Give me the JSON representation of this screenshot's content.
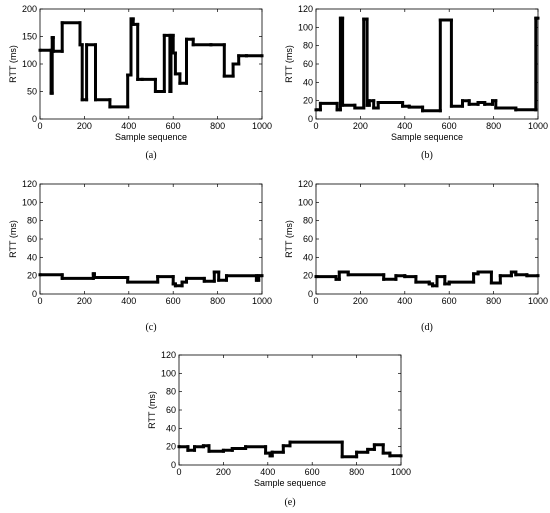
{
  "chart_data": [
    {
      "type": "line",
      "panel_label": "(a)",
      "xlabel": "Sample sequence",
      "ylabel": "RTT (ms)",
      "xlim": [
        0,
        1000
      ],
      "ylim": [
        0,
        200
      ],
      "xticks": [
        0,
        200,
        400,
        600,
        800,
        1000
      ],
      "yticks": [
        0,
        50,
        100,
        150,
        200
      ],
      "grid": false,
      "x": [
        0,
        50,
        50,
        55,
        55,
        60,
        60,
        100,
        100,
        180,
        180,
        190,
        190,
        210,
        210,
        250,
        250,
        315,
        315,
        395,
        395,
        410,
        410,
        420,
        420,
        440,
        440,
        460,
        460,
        520,
        520,
        560,
        560,
        585,
        585,
        590,
        590,
        600,
        600,
        610,
        610,
        630,
        630,
        660,
        660,
        690,
        690,
        770,
        770,
        830,
        830,
        870,
        870,
        895,
        895,
        930,
        930,
        1000
      ],
      "y": [
        125,
        125,
        47,
        47,
        148,
        148,
        123,
        123,
        175,
        175,
        135,
        135,
        35,
        35,
        135,
        135,
        35,
        35,
        22,
        22,
        80,
        80,
        182,
        182,
        172,
        172,
        72,
        72,
        72,
        72,
        50,
        50,
        152,
        152,
        50,
        50,
        152,
        152,
        120,
        120,
        82,
        82,
        65,
        65,
        145,
        145,
        135,
        135,
        135,
        135,
        78,
        78,
        100,
        100,
        115,
        115,
        115,
        115
      ]
    },
    {
      "type": "line",
      "panel_label": "(b)",
      "xlabel": "Sample sequence",
      "ylabel": "RTT (ms)",
      "xlim": [
        0,
        1000
      ],
      "ylim": [
        0,
        120
      ],
      "xticks": [
        0,
        200,
        400,
        600,
        800,
        1000
      ],
      "yticks": [
        0,
        20,
        40,
        60,
        80,
        100,
        120
      ],
      "grid": false,
      "x": [
        0,
        20,
        20,
        95,
        95,
        110,
        110,
        120,
        120,
        175,
        175,
        215,
        215,
        230,
        230,
        240,
        240,
        260,
        260,
        280,
        280,
        350,
        350,
        390,
        390,
        420,
        420,
        480,
        480,
        560,
        560,
        610,
        610,
        660,
        660,
        690,
        690,
        730,
        730,
        760,
        760,
        795,
        795,
        810,
        810,
        900,
        900,
        990,
        990,
        1000
      ],
      "y": [
        10,
        10,
        17,
        17,
        10,
        10,
        110,
        110,
        15,
        15,
        12,
        12,
        109,
        109,
        15,
        15,
        20,
        20,
        12,
        12,
        18,
        18,
        18,
        18,
        14,
        14,
        13,
        13,
        9,
        9,
        108,
        108,
        14,
        14,
        20,
        20,
        16,
        16,
        18,
        18,
        16,
        16,
        20,
        20,
        12,
        12,
        10,
        10,
        110,
        110
      ]
    },
    {
      "type": "line",
      "panel_label": "(c)",
      "xlabel": "",
      "ylabel": "RTT (ms)",
      "xlim": [
        0,
        1000
      ],
      "ylim": [
        0,
        120
      ],
      "xticks": [
        0,
        200,
        400,
        600,
        800,
        1000
      ],
      "yticks": [
        0,
        20,
        40,
        60,
        80,
        100,
        120
      ],
      "grid": false,
      "x": [
        0,
        100,
        100,
        240,
        240,
        245,
        245,
        395,
        395,
        530,
        530,
        600,
        600,
        610,
        610,
        640,
        640,
        660,
        660,
        740,
        740,
        785,
        785,
        805,
        805,
        840,
        840,
        975,
        975,
        985,
        985,
        1000
      ],
      "y": [
        21,
        21,
        17,
        17,
        22,
        22,
        18,
        18,
        13,
        13,
        19,
        19,
        11,
        11,
        9,
        9,
        13,
        13,
        17,
        17,
        14,
        14,
        24,
        24,
        15,
        15,
        20,
        20,
        15,
        15,
        20,
        20
      ]
    },
    {
      "type": "line",
      "panel_label": "(d)",
      "xlabel": "",
      "ylabel": "RTT (ms)",
      "xlim": [
        0,
        1000
      ],
      "ylim": [
        0,
        120
      ],
      "xticks": [
        0,
        200,
        400,
        600,
        800,
        1000
      ],
      "yticks": [
        0,
        20,
        40,
        60,
        80,
        100,
        120
      ],
      "grid": false,
      "x": [
        0,
        90,
        90,
        105,
        105,
        145,
        145,
        305,
        305,
        360,
        360,
        400,
        400,
        450,
        450,
        510,
        510,
        525,
        525,
        545,
        545,
        580,
        580,
        600,
        600,
        710,
        710,
        730,
        730,
        790,
        790,
        830,
        830,
        880,
        880,
        900,
        900,
        950,
        950,
        1000
      ],
      "y": [
        19,
        19,
        16,
        16,
        24,
        24,
        21,
        21,
        16,
        16,
        20,
        20,
        19,
        19,
        13,
        13,
        11,
        11,
        9,
        9,
        19,
        19,
        11,
        11,
        13,
        13,
        22,
        22,
        24,
        24,
        12,
        12,
        20,
        20,
        24,
        24,
        21,
        21,
        20,
        20
      ]
    },
    {
      "type": "line",
      "panel_label": "(e)",
      "xlabel": "Sample sequence",
      "ylabel": "RTT (ms)",
      "xlim": [
        0,
        1000
      ],
      "ylim": [
        0,
        120
      ],
      "xticks": [
        0,
        200,
        400,
        600,
        800,
        1000
      ],
      "yticks": [
        0,
        20,
        40,
        60,
        80,
        100,
        120
      ],
      "grid": false,
      "x": [
        0,
        40,
        40,
        70,
        70,
        110,
        110,
        135,
        135,
        200,
        200,
        240,
        240,
        300,
        300,
        390,
        390,
        410,
        410,
        420,
        420,
        470,
        470,
        500,
        500,
        735,
        735,
        800,
        800,
        850,
        850,
        880,
        880,
        920,
        920,
        950,
        950,
        1000
      ],
      "y": [
        20,
        20,
        16,
        16,
        20,
        20,
        21,
        21,
        15,
        15,
        16,
        16,
        18,
        18,
        20,
        20,
        13,
        13,
        10,
        10,
        14,
        14,
        21,
        21,
        25,
        25,
        9,
        9,
        14,
        14,
        17,
        17,
        22,
        22,
        13,
        13,
        10,
        10
      ]
    }
  ]
}
